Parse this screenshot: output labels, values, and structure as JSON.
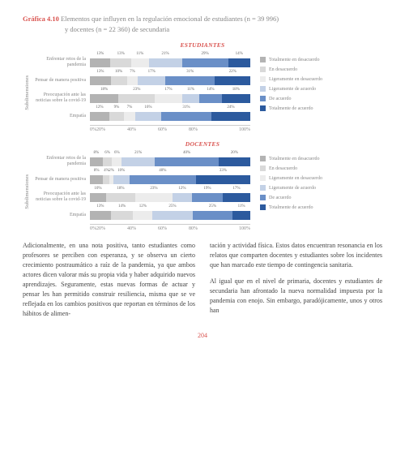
{
  "title_prefix": "Gráfica 4.10",
  "title_text": "Elementos que influyen en la regulación emocional de estudiantes (n = 39 996)",
  "subtitle": "y docentes (n = 22 360) de secundaria",
  "ylabel": "Subdimensiones",
  "axis_ticks": [
    "0%",
    "20%",
    "40%",
    "60%",
    "80%",
    "100%"
  ],
  "colors": {
    "c1": "#b3b3b3",
    "c2": "#d9d9d9",
    "c3": "#ececec",
    "c4": "#c3d1e6",
    "c5": "#6a8fc7",
    "c6": "#2c5a9e"
  },
  "legend": [
    {
      "label": "Totalmente en desacuerdo",
      "color": "c1"
    },
    {
      "label": "En desacuerdo",
      "color": "c2"
    },
    {
      "label": "Ligeramente en desacuerdo",
      "color": "c3"
    },
    {
      "label": "Ligeramente de acuerdo",
      "color": "c4"
    },
    {
      "label": "De acuerdo",
      "color": "c5"
    },
    {
      "label": "Totalmente de acuerdo",
      "color": "c6"
    }
  ],
  "charts": [
    {
      "heading": "ESTUDIANTES",
      "rows": [
        {
          "label": "Enfrentar retos de la pandemia",
          "values": [
            13,
            13,
            11,
            21,
            29,
            14
          ]
        },
        {
          "label": "Pensar de manera positiva",
          "values": [
            13,
            10,
            7,
            17,
            31,
            22
          ]
        },
        {
          "label": "Preocupación ante las noticias sobre la covid-19",
          "values": [
            18,
            23,
            17,
            11,
            14,
            18
          ]
        },
        {
          "label": "Empatía",
          "values": [
            12,
            9,
            7,
            16,
            31,
            24
          ]
        }
      ]
    },
    {
      "heading": "DOCENTES",
      "rows": [
        {
          "label": "Enfrentar retos de la pandemia",
          "values": [
            8,
            6,
            6,
            21,
            40,
            20
          ]
        },
        {
          "label": "Pensar de manera positiva",
          "values": [
            8,
            4,
            2,
            10,
            40,
            33
          ]
        },
        {
          "label": "Preocupación ante las noticias sobre la covid-19",
          "values": [
            10,
            18,
            23,
            12,
            19,
            17
          ]
        },
        {
          "label": "Empatía",
          "values": [
            13,
            14,
            12,
            25,
            25,
            11
          ]
        }
      ]
    }
  ],
  "body": {
    "left": [
      "Adicionalmente, en una nota positiva, tanto estudiantes como profesores se perciben con esperanza, y se observa un cierto crecimiento postraumático a raíz de la pandemia, ya que ambos actores dicen valorar más su propia vida y haber adquirido nuevos aprendizajes. Seguramente, estas nuevas formas de actuar y pensar les han permitido construir resiliencia, misma que se ve reflejada en los cambios positivos que reportan en términos de los hábitos de alimen-"
    ],
    "right": [
      "tación y actividad física. Estos datos encuentran resonancia en los relatos que comparten docentes y estudiantes sobre los incidentes que han marcado este tiempo de contingencia sanitaria.",
      "Al igual que en el nivel de primaria, docentes y estudiantes de secundaria han afrontado la nueva normalidad impuesta por la pandemia con enojo. Sin embargo, paradójicamente, unos y otros han"
    ]
  },
  "page_number": "204"
}
